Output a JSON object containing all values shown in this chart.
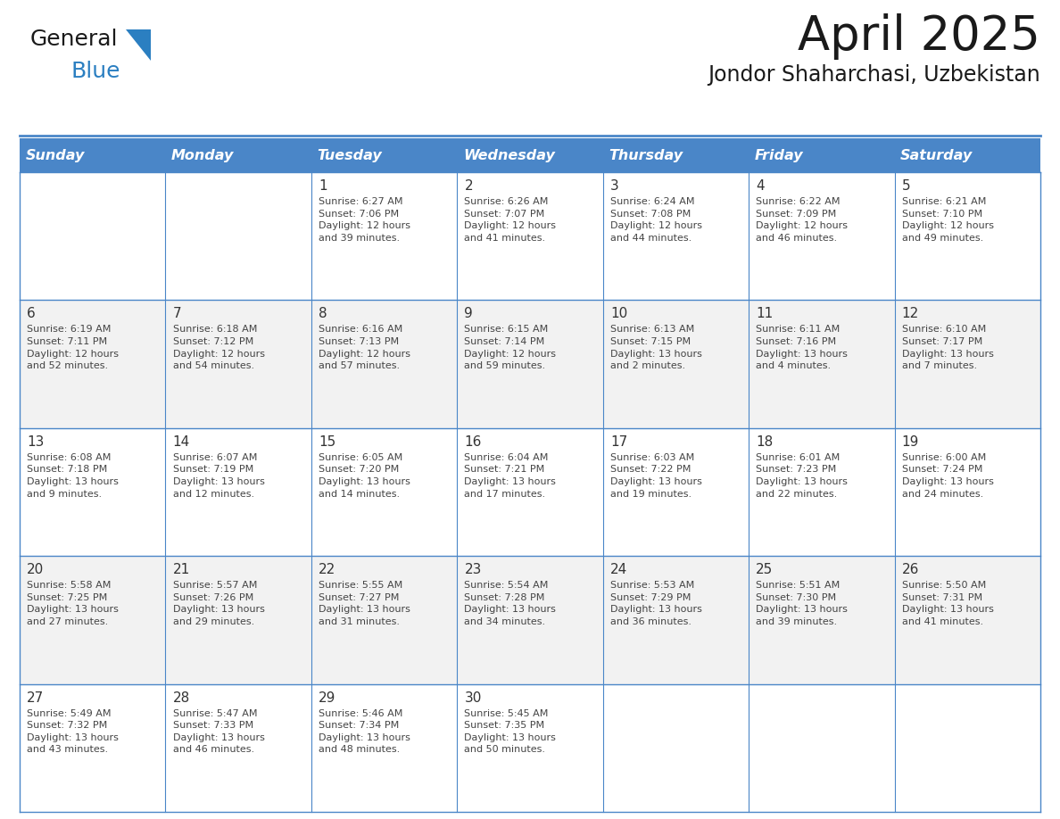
{
  "title": "April 2025",
  "subtitle": "Jondor Shaharchasi, Uzbekistan",
  "header_bg_color": "#4a86c8",
  "header_text_color": "#ffffff",
  "cell_bg_color_even": "#f2f2f2",
  "cell_bg_color_odd": "#ffffff",
  "border_color": "#4a86c8",
  "text_color": "#444444",
  "day_num_color": "#333333",
  "title_color": "#1a1a1a",
  "logo_general_color": "#1a1a1a",
  "logo_blue_color": "#2b7fc1",
  "logo_triangle_color": "#2b7fc1",
  "day_headers": [
    "Sunday",
    "Monday",
    "Tuesday",
    "Wednesday",
    "Thursday",
    "Friday",
    "Saturday"
  ],
  "weeks": [
    [
      {
        "day": "",
        "info": ""
      },
      {
        "day": "",
        "info": ""
      },
      {
        "day": "1",
        "info": "Sunrise: 6:27 AM\nSunset: 7:06 PM\nDaylight: 12 hours\nand 39 minutes."
      },
      {
        "day": "2",
        "info": "Sunrise: 6:26 AM\nSunset: 7:07 PM\nDaylight: 12 hours\nand 41 minutes."
      },
      {
        "day": "3",
        "info": "Sunrise: 6:24 AM\nSunset: 7:08 PM\nDaylight: 12 hours\nand 44 minutes."
      },
      {
        "day": "4",
        "info": "Sunrise: 6:22 AM\nSunset: 7:09 PM\nDaylight: 12 hours\nand 46 minutes."
      },
      {
        "day": "5",
        "info": "Sunrise: 6:21 AM\nSunset: 7:10 PM\nDaylight: 12 hours\nand 49 minutes."
      }
    ],
    [
      {
        "day": "6",
        "info": "Sunrise: 6:19 AM\nSunset: 7:11 PM\nDaylight: 12 hours\nand 52 minutes."
      },
      {
        "day": "7",
        "info": "Sunrise: 6:18 AM\nSunset: 7:12 PM\nDaylight: 12 hours\nand 54 minutes."
      },
      {
        "day": "8",
        "info": "Sunrise: 6:16 AM\nSunset: 7:13 PM\nDaylight: 12 hours\nand 57 minutes."
      },
      {
        "day": "9",
        "info": "Sunrise: 6:15 AM\nSunset: 7:14 PM\nDaylight: 12 hours\nand 59 minutes."
      },
      {
        "day": "10",
        "info": "Sunrise: 6:13 AM\nSunset: 7:15 PM\nDaylight: 13 hours\nand 2 minutes."
      },
      {
        "day": "11",
        "info": "Sunrise: 6:11 AM\nSunset: 7:16 PM\nDaylight: 13 hours\nand 4 minutes."
      },
      {
        "day": "12",
        "info": "Sunrise: 6:10 AM\nSunset: 7:17 PM\nDaylight: 13 hours\nand 7 minutes."
      }
    ],
    [
      {
        "day": "13",
        "info": "Sunrise: 6:08 AM\nSunset: 7:18 PM\nDaylight: 13 hours\nand 9 minutes."
      },
      {
        "day": "14",
        "info": "Sunrise: 6:07 AM\nSunset: 7:19 PM\nDaylight: 13 hours\nand 12 minutes."
      },
      {
        "day": "15",
        "info": "Sunrise: 6:05 AM\nSunset: 7:20 PM\nDaylight: 13 hours\nand 14 minutes."
      },
      {
        "day": "16",
        "info": "Sunrise: 6:04 AM\nSunset: 7:21 PM\nDaylight: 13 hours\nand 17 minutes."
      },
      {
        "day": "17",
        "info": "Sunrise: 6:03 AM\nSunset: 7:22 PM\nDaylight: 13 hours\nand 19 minutes."
      },
      {
        "day": "18",
        "info": "Sunrise: 6:01 AM\nSunset: 7:23 PM\nDaylight: 13 hours\nand 22 minutes."
      },
      {
        "day": "19",
        "info": "Sunrise: 6:00 AM\nSunset: 7:24 PM\nDaylight: 13 hours\nand 24 minutes."
      }
    ],
    [
      {
        "day": "20",
        "info": "Sunrise: 5:58 AM\nSunset: 7:25 PM\nDaylight: 13 hours\nand 27 minutes."
      },
      {
        "day": "21",
        "info": "Sunrise: 5:57 AM\nSunset: 7:26 PM\nDaylight: 13 hours\nand 29 minutes."
      },
      {
        "day": "22",
        "info": "Sunrise: 5:55 AM\nSunset: 7:27 PM\nDaylight: 13 hours\nand 31 minutes."
      },
      {
        "day": "23",
        "info": "Sunrise: 5:54 AM\nSunset: 7:28 PM\nDaylight: 13 hours\nand 34 minutes."
      },
      {
        "day": "24",
        "info": "Sunrise: 5:53 AM\nSunset: 7:29 PM\nDaylight: 13 hours\nand 36 minutes."
      },
      {
        "day": "25",
        "info": "Sunrise: 5:51 AM\nSunset: 7:30 PM\nDaylight: 13 hours\nand 39 minutes."
      },
      {
        "day": "26",
        "info": "Sunrise: 5:50 AM\nSunset: 7:31 PM\nDaylight: 13 hours\nand 41 minutes."
      }
    ],
    [
      {
        "day": "27",
        "info": "Sunrise: 5:49 AM\nSunset: 7:32 PM\nDaylight: 13 hours\nand 43 minutes."
      },
      {
        "day": "28",
        "info": "Sunrise: 5:47 AM\nSunset: 7:33 PM\nDaylight: 13 hours\nand 46 minutes."
      },
      {
        "day": "29",
        "info": "Sunrise: 5:46 AM\nSunset: 7:34 PM\nDaylight: 13 hours\nand 48 minutes."
      },
      {
        "day": "30",
        "info": "Sunrise: 5:45 AM\nSunset: 7:35 PM\nDaylight: 13 hours\nand 50 minutes."
      },
      {
        "day": "",
        "info": ""
      },
      {
        "day": "",
        "info": ""
      },
      {
        "day": "",
        "info": ""
      }
    ]
  ]
}
